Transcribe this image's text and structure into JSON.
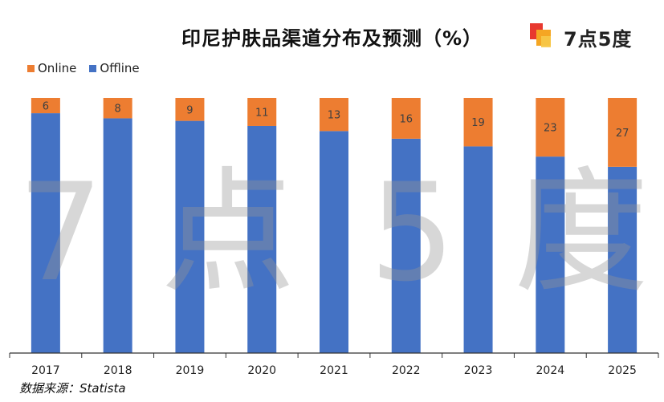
{
  "title": "印尼护肤品渠道分布及预测（%）",
  "logo": {
    "text": "7点5度",
    "colors": [
      "#e8382f",
      "#f5a623",
      "#4a90e2"
    ]
  },
  "watermark": [
    "7",
    "点",
    "5",
    "度"
  ],
  "source": "数据来源：Statista",
  "colors": {
    "online": "#ED7D31",
    "offline": "#4472C4",
    "axis": "#333333"
  },
  "chart_data": {
    "type": "bar",
    "stacked": true,
    "categories": [
      "2017",
      "2018",
      "2019",
      "2020",
      "2021",
      "2022",
      "2023",
      "2024",
      "2025"
    ],
    "series": [
      {
        "name": "Offline",
        "values": [
          94,
          92,
          91,
          89,
          87,
          84,
          81,
          77,
          73
        ]
      },
      {
        "name": "Online",
        "values": [
          6,
          8,
          9,
          11,
          13,
          16,
          19,
          23,
          27
        ]
      }
    ],
    "title": "印尼护肤品渠道分布及预测（%）",
    "xlabel": "",
    "ylabel": "",
    "ylim": [
      0,
      100
    ],
    "legend_position": "top-left",
    "data_labels": "online"
  }
}
